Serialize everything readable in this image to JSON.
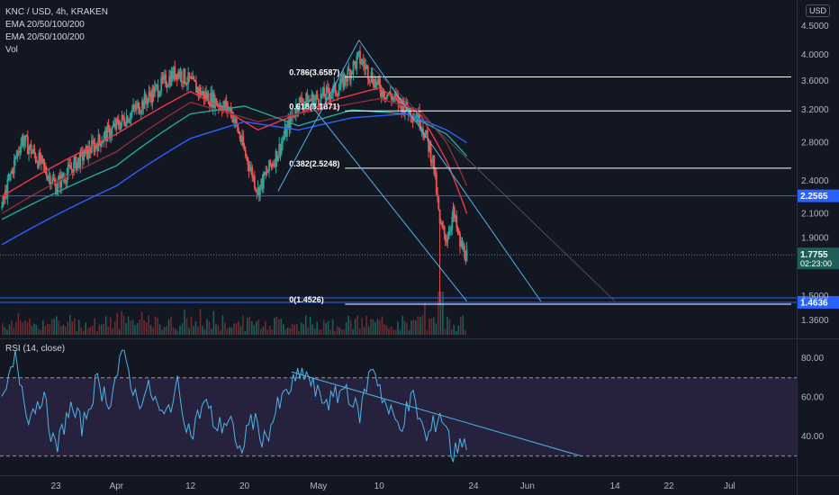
{
  "header": {
    "symbol": "KNC / USD, 4h, KRAKEN",
    "indicator_1": "EMA 20/50/100/200",
    "indicator_2": "EMA 20/50/100/200",
    "indicator_3": "Vol",
    "currency": "USD"
  },
  "rsi_header": "RSI (14, close)",
  "colors": {
    "background": "#131722",
    "candle_up": "#26a69a",
    "candle_down": "#ef5350",
    "ema20": "#f23645",
    "ema50": "#8c2f3a",
    "ema100": "#26a69a",
    "ema200": "#2962ff",
    "trendline": "#4fb3e8",
    "level_line": "#2962ff",
    "rsi_line": "#4fb3e8",
    "rsi_band": "#7e57c2"
  },
  "chart_data": [
    {
      "type": "candlestick",
      "title": "KNC / USD, 4h, KRAKEN",
      "y_ticks": [
        "4.5000",
        "4.0000",
        "3.6000",
        "3.2000",
        "2.8000",
        "2.4000",
        "2.1000",
        "1.9000",
        "1.5000",
        "1.3600"
      ],
      "x_ticks": [
        "23",
        "Apr",
        "12",
        "20",
        "May",
        "10",
        "24",
        "Jun",
        "14",
        "22",
        "Jul"
      ],
      "scale": "log",
      "ylim": [
        1.3,
        4.8
      ],
      "price_path": [
        {
          "x": "Mar 15",
          "y": 2.15
        },
        {
          "x": "Mar 18",
          "y": 2.85
        },
        {
          "x": "Mar 21",
          "y": 2.55
        },
        {
          "x": "Mar 23",
          "y": 2.35
        },
        {
          "x": "Mar 27",
          "y": 2.65
        },
        {
          "x": "Apr 1",
          "y": 3.0
        },
        {
          "x": "Apr 5",
          "y": 3.3
        },
        {
          "x": "Apr 10",
          "y": 3.75
        },
        {
          "x": "Apr 14",
          "y": 3.4
        },
        {
          "x": "Apr 18",
          "y": 3.2
        },
        {
          "x": "Apr 20",
          "y": 2.7
        },
        {
          "x": "Apr 22",
          "y": 2.3
        },
        {
          "x": "Apr 25",
          "y": 2.7
        },
        {
          "x": "Apr 28",
          "y": 3.3
        },
        {
          "x": "May 1",
          "y": 3.35
        },
        {
          "x": "May 4",
          "y": 3.5
        },
        {
          "x": "May 7",
          "y": 3.95
        },
        {
          "x": "May 10",
          "y": 3.5
        },
        {
          "x": "May 13",
          "y": 3.3
        },
        {
          "x": "May 16",
          "y": 3.1
        },
        {
          "x": "May 18",
          "y": 2.6
        },
        {
          "x": "May 19",
          "y": 2.0
        },
        {
          "x": "May 20",
          "y": 1.9
        },
        {
          "x": "May 21",
          "y": 2.1
        },
        {
          "x": "May 22",
          "y": 1.85
        },
        {
          "x": "May 23",
          "y": 1.7755
        }
      ],
      "ema_lines": [
        {
          "name": "EMA 20",
          "points": [
            {
              "x": "Mar 15",
              "y": 2.25
            },
            {
              "x": "Apr 1",
              "y": 2.9
            },
            {
              "x": "Apr 12",
              "y": 3.45
            },
            {
              "x": "Apr 22",
              "y": 2.95
            },
            {
              "x": "May 4",
              "y": 3.35
            },
            {
              "x": "May 10",
              "y": 3.5
            },
            {
              "x": "May 16",
              "y": 3.15
            },
            {
              "x": "May 20",
              "y": 2.6
            },
            {
              "x": "May 23",
              "y": 2.1
            }
          ]
        },
        {
          "name": "EMA 50",
          "points": [
            {
              "x": "Mar 15",
              "y": 2.1
            },
            {
              "x": "Apr 1",
              "y": 2.7
            },
            {
              "x": "Apr 12",
              "y": 3.3
            },
            {
              "x": "Apr 22",
              "y": 3.05
            },
            {
              "x": "May 4",
              "y": 3.25
            },
            {
              "x": "May 10",
              "y": 3.35
            },
            {
              "x": "May 16",
              "y": 3.2
            },
            {
              "x": "May 20",
              "y": 2.8
            },
            {
              "x": "May 23",
              "y": 2.35
            }
          ]
        },
        {
          "name": "EMA 100",
          "points": [
            {
              "x": "Mar 15",
              "y": 2.05
            },
            {
              "x": "Apr 1",
              "y": 2.55
            },
            {
              "x": "Apr 12",
              "y": 3.15
            },
            {
              "x": "Apr 20",
              "y": 3.25
            },
            {
              "x": "Apr 28",
              "y": 3.0
            },
            {
              "x": "May 6",
              "y": 3.2
            },
            {
              "x": "May 14",
              "y": 3.15
            },
            {
              "x": "May 20",
              "y": 2.9
            },
            {
              "x": "May 23",
              "y": 2.65
            }
          ]
        },
        {
          "name": "EMA 200",
          "points": [
            {
              "x": "Mar 15",
              "y": 1.85
            },
            {
              "x": "Apr 1",
              "y": 2.35
            },
            {
              "x": "Apr 12",
              "y": 2.85
            },
            {
              "x": "Apr 20",
              "y": 3.05
            },
            {
              "x": "Apr 28",
              "y": 2.95
            },
            {
              "x": "May 6",
              "y": 3.1
            },
            {
              "x": "May 14",
              "y": 3.15
            },
            {
              "x": "May 20",
              "y": 2.95
            },
            {
              "x": "May 23",
              "y": 2.8
            }
          ]
        }
      ],
      "horizontal_levels": [
        {
          "label": "2.2565",
          "value": 2.2565,
          "x_start": "Mar 15"
        },
        {
          "label": "1.4636",
          "value": 1.4636,
          "x_start": "Mar 15"
        }
      ],
      "current_price": {
        "label": "1.7755",
        "time": "02:23:00",
        "value": 1.7755
      },
      "fibonacci": [
        {
          "label": "0.786(3.6587)",
          "value": 3.6587
        },
        {
          "label": "0.618(3.1871)",
          "value": 3.1871
        },
        {
          "label": "0.382(2.5248)",
          "value": 2.5248
        },
        {
          "label": "0(1.4526)",
          "value": 1.4526
        }
      ],
      "trendlines": [
        {
          "from": {
            "x": "Apr 25",
            "y": 2.3
          },
          "to": {
            "x": "May 7",
            "y": 4.25
          }
        },
        {
          "from": {
            "x": "May 7",
            "y": 4.25
          },
          "to": {
            "x": "Jun 3",
            "y": 1.47
          }
        },
        {
          "from": {
            "x": "Apr 30",
            "y": 3.25
          },
          "to": {
            "x": "May 23",
            "y": 1.47
          }
        },
        {
          "from": {
            "x": "May 9",
            "y": 3.8
          },
          "to": {
            "x": "Jun 14",
            "y": 1.47
          }
        }
      ]
    },
    {
      "type": "line",
      "title": "RSI (14, close)",
      "y_ticks": [
        "80.00",
        "60.00",
        "40.00"
      ],
      "ylim": [
        25,
        85
      ],
      "bands": [
        70,
        30
      ],
      "points": [
        {
          "x": "Mar 15",
          "y": 55
        },
        {
          "x": "Mar 17",
          "y": 80
        },
        {
          "x": "Mar 19",
          "y": 50
        },
        {
          "x": "Mar 21",
          "y": 62
        },
        {
          "x": "Mar 23",
          "y": 32
        },
        {
          "x": "Mar 25",
          "y": 55
        },
        {
          "x": "Mar 27",
          "y": 45
        },
        {
          "x": "Mar 29",
          "y": 68
        },
        {
          "x": "Mar 31",
          "y": 58
        },
        {
          "x": "Apr 2",
          "y": 84
        },
        {
          "x": "Apr 4",
          "y": 58
        },
        {
          "x": "Apr 6",
          "y": 64
        },
        {
          "x": "Apr 8",
          "y": 48
        },
        {
          "x": "Apr 10",
          "y": 66
        },
        {
          "x": "Apr 12",
          "y": 40
        },
        {
          "x": "Apr 14",
          "y": 58
        },
        {
          "x": "Apr 16",
          "y": 44
        },
        {
          "x": "Apr 18",
          "y": 50
        },
        {
          "x": "Apr 19",
          "y": 28
        },
        {
          "x": "Apr 21",
          "y": 50
        },
        {
          "x": "Apr 23",
          "y": 38
        },
        {
          "x": "Apr 25",
          "y": 55
        },
        {
          "x": "Apr 27",
          "y": 66
        },
        {
          "x": "Apr 29",
          "y": 73
        },
        {
          "x": "May 1",
          "y": 60
        },
        {
          "x": "May 3",
          "y": 58
        },
        {
          "x": "May 5",
          "y": 66
        },
        {
          "x": "May 7",
          "y": 50
        },
        {
          "x": "May 9",
          "y": 78
        },
        {
          "x": "May 11",
          "y": 55
        },
        {
          "x": "May 13",
          "y": 45
        },
        {
          "x": "May 15",
          "y": 60
        },
        {
          "x": "May 17",
          "y": 38
        },
        {
          "x": "May 19",
          "y": 52
        },
        {
          "x": "May 20",
          "y": 45
        },
        {
          "x": "May 21",
          "y": 28
        },
        {
          "x": "May 22",
          "y": 40
        },
        {
          "x": "May 23",
          "y": 36
        }
      ],
      "trendlines": [
        {
          "from": {
            "x": "Apr 27",
            "y": 73
          },
          "to": {
            "x": "Jun 9",
            "y": 30
          }
        }
      ]
    }
  ]
}
